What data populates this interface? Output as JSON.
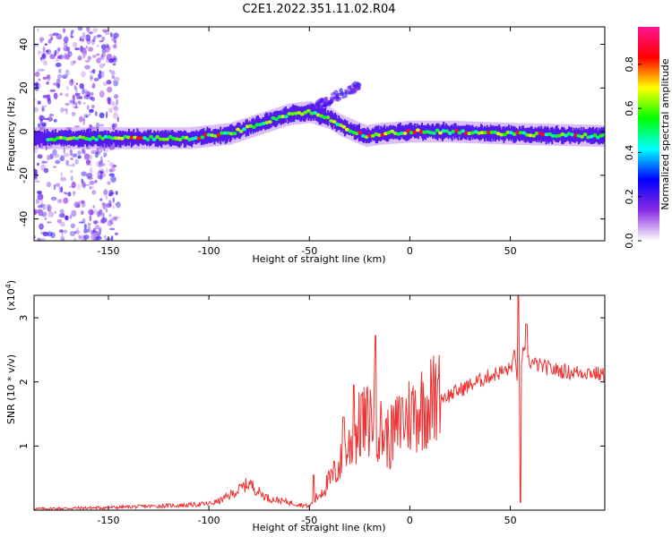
{
  "title": "C2E1.2022.351.11.02.R04",
  "chart_data": [
    {
      "type": "heatmap",
      "xlabel": "Height of straight line (km)",
      "ylabel": "Frequency (Hz)",
      "xlim": [
        -187,
        97
      ],
      "ylim": [
        -50,
        48
      ],
      "xticks": [
        -150,
        -100,
        -50,
        0,
        50
      ],
      "yticks": [
        -40,
        -20,
        0,
        20,
        40
      ],
      "ridge_x": [
        -187,
        -150,
        -130,
        -110,
        -100,
        -90,
        -80,
        -70,
        -60,
        -50,
        -40,
        -35,
        -30,
        -25,
        -22,
        -15,
        0,
        20,
        50,
        97
      ],
      "ridge_freq": [
        -3,
        -3,
        -3,
        -3,
        -2,
        -1,
        2,
        5,
        8,
        9,
        6,
        3,
        1,
        -1,
        -2,
        -1,
        0,
        0,
        -1,
        -2
      ],
      "colorbar": {
        "label": "Normalized spectral amplitude",
        "range": [
          0.0,
          0.97
        ],
        "ticks": [
          "0.0",
          "0.2",
          "0.4",
          "0.6",
          "0.8"
        ],
        "colors": [
          "#ffffff",
          "#8a2be2",
          "#0000ff",
          "#00ffff",
          "#00ff00",
          "#ffff00",
          "#ff0000",
          "#ff1493"
        ]
      }
    },
    {
      "type": "line",
      "xlabel": "Height of straight line (km)",
      "ylabel": "SNR (10 * v/v)",
      "scale_note": "(x10",
      "scale_exp": "4",
      "xlim": [
        -187,
        97
      ],
      "ylim": [
        0,
        3.35
      ],
      "xticks": [
        -150,
        -100,
        -50,
        0,
        50
      ],
      "yticks": [
        1,
        2,
        3
      ],
      "color": "#ee3333",
      "x": [
        -187,
        -170,
        -150,
        -130,
        -110,
        -100,
        -95,
        -90,
        -85,
        -80,
        -75,
        -70,
        -60,
        -50,
        -45,
        -40,
        -35,
        -30,
        -25,
        -20,
        -18,
        -15,
        -10,
        -5,
        0,
        10,
        20,
        30,
        40,
        50,
        52,
        54,
        56,
        60,
        70,
        80,
        90,
        97
      ],
      "y": [
        0.02,
        0.03,
        0.04,
        0.06,
        0.08,
        0.1,
        0.14,
        0.22,
        0.32,
        0.42,
        0.28,
        0.18,
        0.12,
        0.06,
        0.25,
        0.45,
        0.7,
        1.0,
        1.3,
        1.4,
        1.6,
        1.25,
        1.1,
        1.35,
        1.5,
        1.7,
        1.8,
        1.95,
        2.1,
        2.2,
        2.4,
        2.0,
        2.45,
        2.3,
        2.2,
        2.15,
        2.15,
        2.1
      ],
      "spikes": [
        {
          "x": -48,
          "y": 0.55
        },
        {
          "x": -33,
          "y": 1.45
        },
        {
          "x": -28,
          "y": 1.95
        },
        {
          "x": -24,
          "y": 1.8
        },
        {
          "x": -17,
          "y": 2.72
        },
        {
          "x": -4,
          "y": 1.75
        },
        {
          "x": 14,
          "y": 2.05
        },
        {
          "x": 54,
          "y": 3.35
        },
        {
          "x": 55,
          "y": 0.12
        },
        {
          "x": 58,
          "y": 2.9
        }
      ]
    }
  ]
}
